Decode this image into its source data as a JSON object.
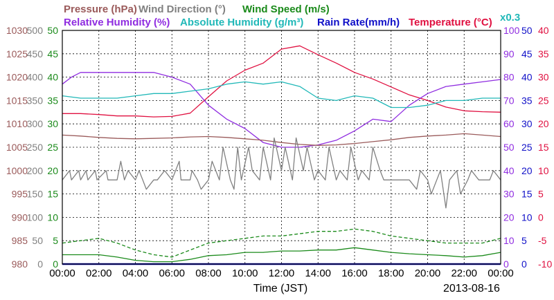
{
  "chart_data": {
    "type": "line",
    "date": "2013-08-16",
    "xlabel": "Time (JST)",
    "x_ticks": [
      "00:00",
      "02:00",
      "04:00",
      "06:00",
      "08:00",
      "10:00",
      "12:00",
      "14:00",
      "16:00",
      "18:00",
      "20:00",
      "22:00",
      "00:00"
    ],
    "legend": [
      {
        "text": "Pressure (hPa)",
        "color": "#9a5a5a"
      },
      {
        "text": "Wind Direction (°)",
        "color": "#808080"
      },
      {
        "text": "Wind Speed (m/s)",
        "color": "#1a8a1a"
      },
      {
        "text": "Relative Humidity (%)",
        "color": "#8f2ce0"
      },
      {
        "text": "Absolute Humidity (g/m³)",
        "color": "#20b8b8"
      },
      {
        "text": "Rain Rate(mm/h)",
        "color": "#1010c8"
      },
      {
        "text": "Temperature (°C)",
        "color": "#e01040"
      }
    ],
    "abs_humidity_scale_note": "x0.3",
    "axes": {
      "pressure": {
        "range": [
          980,
          1030
        ],
        "ticks": [
          980,
          985,
          990,
          995,
          1000,
          1005,
          1010,
          1015,
          1020,
          1025,
          1030
        ],
        "color": "#9a5a5a"
      },
      "wind_direction": {
        "range": [
          0,
          500
        ],
        "ticks": [
          0,
          50,
          100,
          150,
          200,
          250,
          300,
          350,
          400,
          450,
          500
        ],
        "color": "#808080"
      },
      "wind_speed": {
        "range": [
          0,
          50
        ],
        "ticks": [
          0,
          5,
          10,
          15,
          20,
          25,
          30,
          35,
          40,
          45,
          50
        ],
        "color": "#1a8a1a"
      },
      "humidity": {
        "range": [
          0,
          100
        ],
        "ticks": [
          0,
          10,
          20,
          30,
          40,
          50,
          60,
          70,
          80,
          90,
          100
        ],
        "color": "#8f2ce0"
      },
      "rain_rate": {
        "range": [
          0,
          50
        ],
        "ticks": [
          0,
          5,
          10,
          15,
          20,
          25,
          30,
          35,
          40,
          45,
          50
        ],
        "color": "#1010c8"
      },
      "temperature": {
        "range": [
          -10,
          40
        ],
        "ticks": [
          -10,
          -5,
          0,
          5,
          10,
          15,
          20,
          25,
          30,
          35,
          40
        ],
        "color": "#e01040"
      }
    },
    "series": [
      {
        "name": "Temperature (°C)",
        "axis": "temperature",
        "color": "#e01040",
        "x": [
          0,
          1,
          2,
          3,
          4,
          5,
          6,
          7,
          8,
          9,
          10,
          11,
          12,
          13,
          14,
          15,
          16,
          17,
          18,
          19,
          20,
          21,
          22,
          23,
          24
        ],
        "values": [
          22.2,
          22.2,
          22.0,
          21.7,
          21.7,
          21.5,
          21.6,
          22.3,
          25.8,
          29.2,
          31.5,
          33.0,
          36.0,
          36.7,
          34.8,
          33.0,
          31.0,
          29.6,
          27.9,
          26.2,
          25.0,
          23.6,
          22.8,
          22.6,
          22.5
        ]
      },
      {
        "name": "Relative Humidity (%)",
        "axis": "humidity",
        "color": "#8f2ce0",
        "x": [
          0,
          0.5,
          1,
          2,
          3,
          4,
          5,
          6,
          7,
          8,
          9,
          10,
          11,
          12,
          13,
          14,
          15,
          16,
          17,
          18,
          19,
          20,
          21,
          22,
          23,
          24
        ],
        "values": [
          77,
          80,
          82,
          82,
          82,
          82,
          82,
          80,
          77,
          68,
          62,
          58,
          52,
          50,
          50,
          51,
          53,
          57,
          62,
          61,
          68,
          73,
          76,
          77,
          78,
          79
        ]
      },
      {
        "name": "Absolute Humidity (g/m³)",
        "axis": "humidity",
        "color": "#20b8b8",
        "x": [
          0,
          1,
          2,
          3,
          4,
          5,
          6,
          7,
          8,
          9,
          10,
          11,
          12,
          13,
          14,
          15,
          16,
          17,
          18,
          19,
          20,
          21,
          22,
          23,
          24
        ],
        "values": [
          72,
          71,
          71,
          71,
          72,
          73,
          73,
          74,
          75,
          77,
          78,
          77,
          78,
          76,
          71,
          70,
          72,
          71,
          67,
          67,
          68,
          70,
          70,
          71,
          71
        ]
      },
      {
        "name": "Pressure (hPa)",
        "axis": "pressure",
        "color": "#9a5a5a",
        "x": [
          0,
          1,
          2,
          3,
          4,
          5,
          6,
          7,
          8,
          9,
          10,
          11,
          12,
          13,
          14,
          15,
          16,
          17,
          18,
          19,
          20,
          21,
          22,
          23,
          24
        ],
        "values": [
          1007.6,
          1007.4,
          1007.1,
          1006.9,
          1006.8,
          1006.9,
          1007.0,
          1007.2,
          1007.3,
          1007.1,
          1006.8,
          1006.5,
          1006.0,
          1005.6,
          1005.4,
          1005.5,
          1005.8,
          1006.2,
          1006.6,
          1007.1,
          1007.4,
          1007.6,
          1007.9,
          1007.6,
          1007.3
        ]
      },
      {
        "name": "Wind Direction (°)",
        "axis": "wind_direction",
        "color": "#808080",
        "x": [
          0,
          0.4,
          0.5,
          0.9,
          1.0,
          1.3,
          1.4,
          1.8,
          1.9,
          2.4,
          2.5,
          3.0,
          3.2,
          3.4,
          3.6,
          4.0,
          4.2,
          4.4,
          4.6,
          5.0,
          5.2,
          5.6,
          6.0,
          6.4,
          6.5,
          7.0,
          7.1,
          7.4,
          7.6,
          8.0,
          8.2,
          8.6,
          8.8,
          9.2,
          9.4,
          9.6,
          9.8,
          10.2,
          10.4,
          10.8,
          11.0,
          11.4,
          11.6,
          12.0,
          12.2,
          12.6,
          12.8,
          13.2,
          13.4,
          13.8,
          14.0,
          14.4,
          14.6,
          15.0,
          15.2,
          15.6,
          15.8,
          16.2,
          16.4,
          16.8,
          17.0,
          17.4,
          17.6,
          18.0,
          18.4,
          18.6,
          19.0,
          19.4,
          19.6,
          20.0,
          20.2,
          20.5,
          20.7,
          21.0,
          21.2,
          21.6,
          21.8,
          22.2,
          22.4,
          22.8,
          23.0,
          23.4,
          23.6,
          24.0
        ],
        "values": [
          180,
          200,
          180,
          200,
          180,
          200,
          180,
          200,
          180,
          200,
          180,
          180,
          220,
          180,
          200,
          180,
          200,
          180,
          160,
          180,
          180,
          200,
          180,
          220,
          180,
          180,
          200,
          180,
          160,
          180,
          220,
          180,
          250,
          180,
          160,
          250,
          180,
          250,
          200,
          180,
          250,
          180,
          270,
          200,
          250,
          180,
          270,
          200,
          250,
          180,
          200,
          180,
          250,
          180,
          200,
          180,
          250,
          180,
          200,
          180,
          250,
          200,
          180,
          180,
          180,
          180,
          180,
          160,
          200,
          180,
          150,
          180,
          200,
          120,
          180,
          200,
          150,
          180,
          200,
          180,
          180,
          180,
          200,
          180
        ]
      },
      {
        "name": "Wind Speed (m/s) mean",
        "axis": "wind_speed",
        "color": "#1a8a1a",
        "dash": "solid",
        "x": [
          0,
          1,
          2,
          3,
          4,
          5,
          6,
          7,
          8,
          9,
          10,
          11,
          12,
          13,
          14,
          15,
          16,
          17,
          18,
          19,
          20,
          21,
          22,
          23,
          24
        ],
        "values": [
          2.0,
          2.0,
          2.0,
          1.5,
          0.8,
          0.5,
          0.5,
          1.0,
          1.8,
          2.0,
          2.5,
          2.5,
          2.8,
          2.8,
          3.0,
          3.0,
          3.5,
          3.0,
          2.5,
          2.2,
          2.0,
          1.8,
          1.5,
          1.8,
          2.5
        ]
      },
      {
        "name": "Wind Speed (m/s) gust",
        "axis": "wind_speed",
        "color": "#1a8a1a",
        "dash": "dashed",
        "x": [
          0,
          1,
          2,
          3,
          4,
          5,
          6,
          7,
          8,
          9,
          10,
          11,
          12,
          13,
          14,
          15,
          16,
          17,
          18,
          19,
          20,
          21,
          22,
          23,
          24
        ],
        "values": [
          4.5,
          5.0,
          5.5,
          4.5,
          3.0,
          2.0,
          1.5,
          3.0,
          4.5,
          5.0,
          5.5,
          6.0,
          6.0,
          6.5,
          7.0,
          7.0,
          7.5,
          7.0,
          6.0,
          5.5,
          5.0,
          4.5,
          4.5,
          4.5,
          5.5
        ]
      },
      {
        "name": "Rain Rate(mm/h)",
        "axis": "rain_rate",
        "color": "#1010c8",
        "x": [
          0,
          24
        ],
        "values": [
          0,
          0
        ]
      }
    ]
  }
}
